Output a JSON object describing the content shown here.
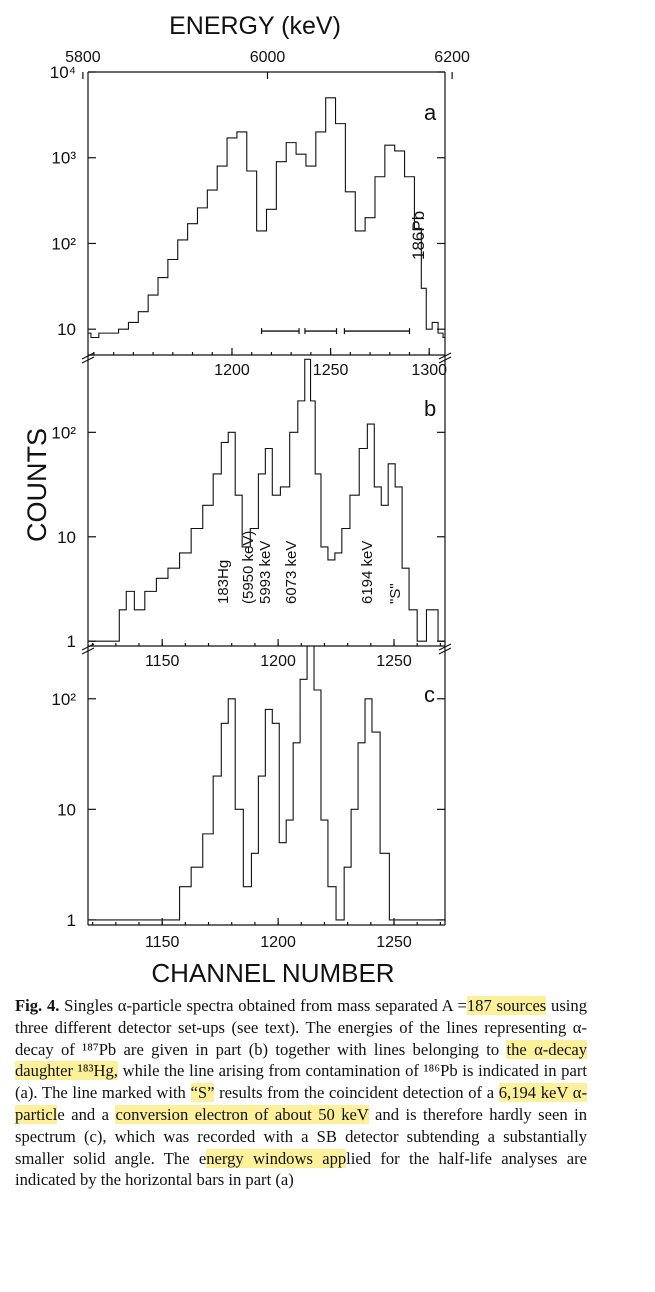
{
  "figure": {
    "top_axis_title": "ENERGY (keV)",
    "y_axis_title": "COUNTS",
    "bottom_axis_title": "CHANNEL NUMBER",
    "panels": {
      "a": {
        "label": "a",
        "isotope_label": "186Pb"
      },
      "b": {
        "label": "b",
        "line_labels": [
          "183Hg",
          "(5950 keV)",
          "5993 keV",
          "6073 keV",
          "6194 keV",
          "\"S\""
        ]
      },
      "c": {
        "label": "c"
      }
    }
  },
  "chart_data": [
    {
      "panel": "a",
      "type": "line",
      "top_axis": {
        "label": "ENERGY (keV)",
        "ticks": [
          5800,
          6000,
          6200
        ]
      },
      "x_axis": {
        "label": "",
        "ticks": [
          1200,
          1250,
          1300
        ],
        "range": [
          1127,
          1308
        ]
      },
      "y_axis": {
        "label": "COUNTS",
        "scale": "log",
        "ticks": [
          "10",
          "10²",
          "10³",
          "10⁴"
        ],
        "range": [
          5,
          10000
        ]
      },
      "series": [
        {
          "x": [
            1127,
            1130,
            1135,
            1140,
            1145,
            1150,
            1155,
            1160,
            1165,
            1170,
            1175,
            1180,
            1185,
            1190,
            1195,
            1200,
            1205,
            1210,
            1215,
            1220,
            1225,
            1230,
            1235,
            1240,
            1245,
            1250,
            1255,
            1260,
            1265,
            1270,
            1275,
            1280,
            1285,
            1290,
            1295,
            1297,
            1300,
            1303,
            1306,
            1308
          ],
          "y": [
            9,
            8,
            9,
            9,
            10,
            12,
            16,
            25,
            40,
            65,
            110,
            170,
            260,
            420,
            800,
            1700,
            2000,
            700,
            140,
            250,
            900,
            1500,
            1100,
            800,
            2000,
            5000,
            2500,
            400,
            140,
            200,
            600,
            1400,
            1200,
            600,
            150,
            30,
            10,
            12,
            9,
            8
          ]
        }
      ],
      "annotations": [
        "186Pb"
      ],
      "energy_windows": [
        [
          1215,
          1234
        ],
        [
          1237,
          1253
        ],
        [
          1257,
          1290
        ]
      ]
    },
    {
      "panel": "b",
      "type": "line",
      "x_axis": {
        "label": "",
        "ticks": [
          1150,
          1200,
          1250
        ],
        "range": [
          1118,
          1272
        ]
      },
      "y_axis": {
        "label": "COUNTS",
        "scale": "log",
        "ticks": [
          "1",
          "10",
          "10²"
        ],
        "range": [
          0.9,
          550
        ]
      },
      "series": [
        {
          "x": [
            1118,
            1125,
            1130,
            1133,
            1136,
            1140,
            1145,
            1150,
            1155,
            1160,
            1165,
            1170,
            1174,
            1177,
            1180,
            1183,
            1186,
            1190,
            1193,
            1196,
            1199,
            1203,
            1207,
            1210,
            1213,
            1215,
            1217,
            1220,
            1223,
            1226,
            1229,
            1233,
            1237,
            1240,
            1243,
            1246,
            1249,
            1252,
            1255,
            1258,
            1262,
            1266,
            1272
          ],
          "y": [
            1,
            1,
            1,
            2,
            3,
            2,
            3,
            4,
            5,
            7,
            12,
            20,
            40,
            80,
            100,
            25,
            8,
            12,
            40,
            70,
            25,
            30,
            100,
            200,
            500,
            200,
            40,
            8,
            6,
            7,
            12,
            25,
            70,
            120,
            30,
            20,
            50,
            30,
            5,
            2,
            1,
            2,
            1
          ]
        }
      ],
      "annotations": [
        "183Hg",
        "(5950 keV)",
        "5993 keV",
        "6073 keV",
        "6194 keV",
        "\"S\""
      ]
    },
    {
      "panel": "c",
      "type": "line",
      "x_axis": {
        "label": "CHANNEL NUMBER",
        "ticks": [
          1150,
          1200,
          1250
        ],
        "range": [
          1118,
          1272
        ]
      },
      "y_axis": {
        "label": "COUNTS",
        "scale": "log",
        "ticks": [
          "1",
          "10",
          "10²"
        ],
        "range": [
          0.9,
          300
        ]
      },
      "series": [
        {
          "x": [
            1118,
            1125,
            1135,
            1145,
            1155,
            1160,
            1165,
            1170,
            1174,
            1177,
            1180,
            1183,
            1187,
            1190,
            1193,
            1196,
            1199,
            1202,
            1205,
            1208,
            1211,
            1214,
            1217,
            1220,
            1223,
            1227,
            1230,
            1233,
            1236,
            1239,
            1242,
            1246,
            1250,
            1255,
            1260,
            1265,
            1272
          ],
          "y": [
            1,
            1,
            1,
            1,
            1,
            2,
            3,
            6,
            20,
            60,
            100,
            10,
            2,
            4,
            20,
            80,
            60,
            5,
            8,
            40,
            150,
            300,
            120,
            8,
            2,
            1,
            3,
            10,
            40,
            100,
            50,
            4,
            1,
            1,
            1,
            1,
            1
          ]
        }
      ]
    }
  ],
  "caption": {
    "fig_label": "Fig. 4.",
    "part1": "Singles α-particle spectra obtained from mass separated A =",
    "hl1": "187 sources",
    "part2": " using three different detector set-ups (see text). The energies of the lines representing α-decay of ¹⁸⁷Pb are given in part (b) together with lines belonging to ",
    "hl2": "the α-decay daughter ¹⁸³Hg,",
    "part3": " while the line arising from contamination of ¹⁸⁶Pb is indicated in part (a). The line marked with ",
    "hl3": "“S”",
    "part4": " results from the coincident detection of a ",
    "hl4": "6,194 keV α-particl",
    "part5": "e and a ",
    "hl5": "conversion electron of about 50 keV",
    "part6": " and is therefore hardly seen in spectrum (c), which was recorded with a SB detector subtending a substantially smaller solid angle. The e",
    "hl6": "nergy windows app",
    "part7": "lied for the half-life analyses are indicated by the horizontal bars in part (a)"
  }
}
